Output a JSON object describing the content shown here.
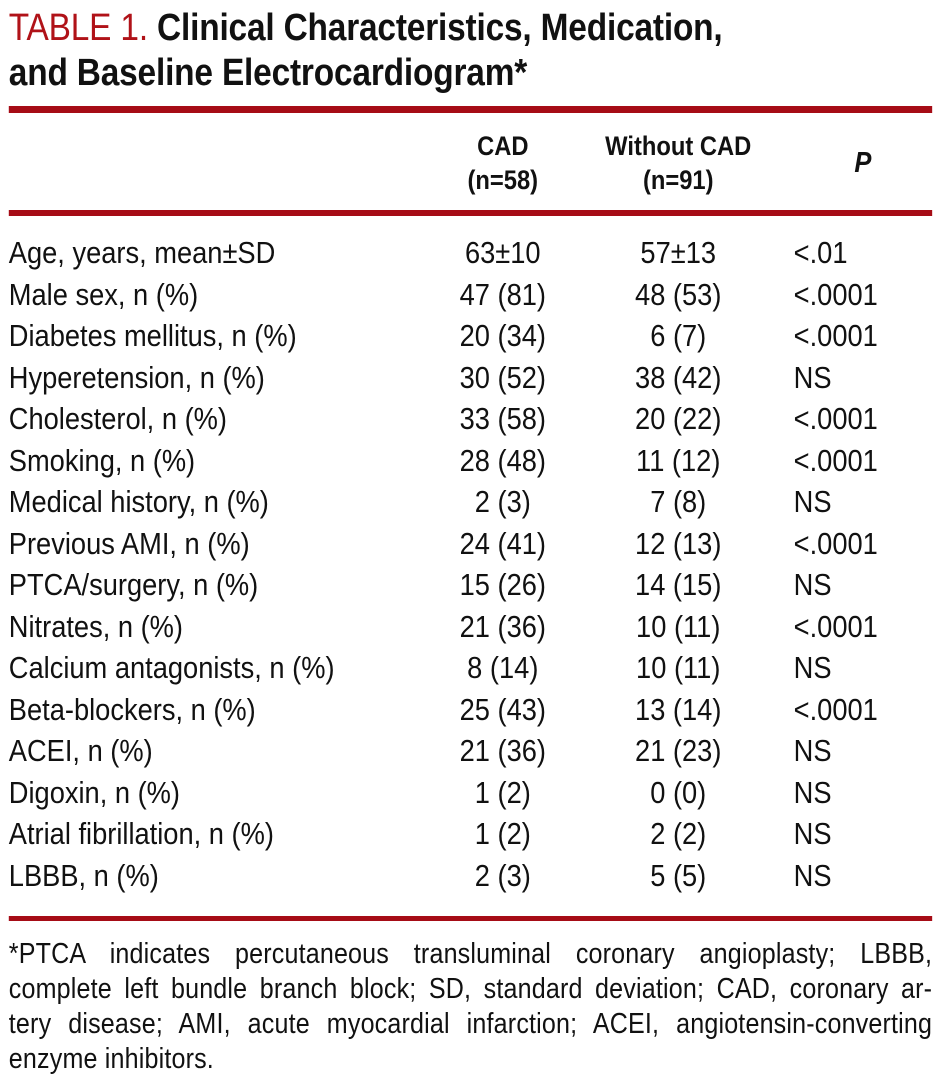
{
  "colors": {
    "accent_red": "#a60c16",
    "title_red": "#b01218",
    "text": "#111111",
    "background": "#ffffff"
  },
  "title": {
    "label": "TABLE 1.",
    "line1_rest": "Clinical Characteristics, Medication,",
    "line2": "and Baseline Electrocardiogram*"
  },
  "table": {
    "header": {
      "cad_line1": "CAD",
      "cad_line2": "(n=58)",
      "without_cad_line1": "Without CAD",
      "without_cad_line2": "(n=91)",
      "p": "P"
    },
    "rows": [
      {
        "label": "Age, years, mean±SD",
        "cad": "63±10",
        "without_cad": "57±13",
        "p": "<.01"
      },
      {
        "label": "Male sex, n (%)",
        "cad": "47 (81)",
        "without_cad": "48 (53)",
        "p": "<.0001"
      },
      {
        "label": "Diabetes mellitus, n (%)",
        "cad": "20 (34)",
        "without_cad": "6 (7)",
        "p": "<.0001"
      },
      {
        "label": "Hyperetension, n (%)",
        "cad": "30 (52)",
        "without_cad": "38 (42)",
        "p": "NS"
      },
      {
        "label": "Cholesterol, n (%)",
        "cad": "33 (58)",
        "without_cad": "20 (22)",
        "p": "<.0001"
      },
      {
        "label": "Smoking, n (%)",
        "cad": "28 (48)",
        "without_cad": "11 (12)",
        "p": "<.0001"
      },
      {
        "label": "Medical history, n (%)",
        "cad": "2 (3)",
        "without_cad": "7 (8)",
        "p": "NS"
      },
      {
        "label": "Previous AMI, n (%)",
        "cad": "24 (41)",
        "without_cad": "12 (13)",
        "p": "<.0001"
      },
      {
        "label": "PTCA/surgery, n (%)",
        "cad": "15 (26)",
        "without_cad": "14 (15)",
        "p": "NS"
      },
      {
        "label": "Nitrates, n (%)",
        "cad": "21 (36)",
        "without_cad": "10 (11)",
        "p": "<.0001"
      },
      {
        "label": "Calcium antagonists, n (%)",
        "cad": "8 (14)",
        "without_cad": "10 (11)",
        "p": "NS"
      },
      {
        "label": "Beta-blockers, n (%)",
        "cad": "25 (43)",
        "without_cad": "13 (14)",
        "p": "<.0001"
      },
      {
        "label": "ACEI, n (%)",
        "cad": "21 (36)",
        "without_cad": "21 (23)",
        "p": "NS"
      },
      {
        "label": "Digoxin, n (%)",
        "cad": "1 (2)",
        "without_cad": "0 (0)",
        "p": "NS"
      },
      {
        "label": "Atrial fibrillation, n (%)",
        "cad": "1 (2)",
        "without_cad": "2 (2)",
        "p": "NS"
      },
      {
        "label": "LBBB, n (%)",
        "cad": "2 (3)",
        "without_cad": "5 (5)",
        "p": "NS"
      }
    ]
  },
  "footnote": {
    "lines": [
      "*PTCA indicates percutaneous transluminal coronary angioplasty; LBBB,",
      "complete left bundle branch block; SD, standard deviation; CAD, coronary ar-",
      "tery disease; AMI, acute myocardial infarction; ACEI, angiotensin-converting",
      "enzyme inhibitors."
    ]
  }
}
